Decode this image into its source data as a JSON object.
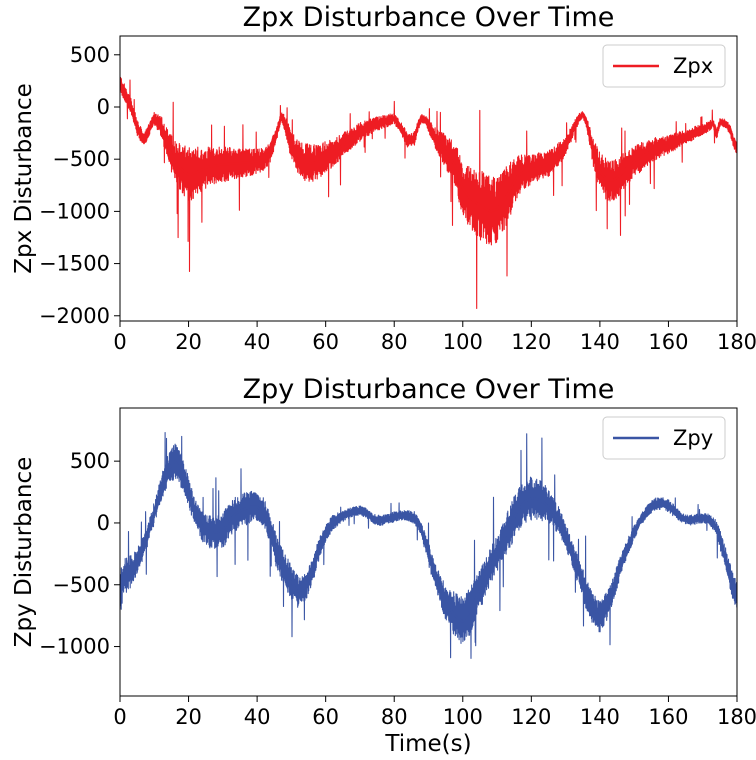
{
  "chart_data": [
    {
      "type": "line",
      "title": "Zpx Disturbance Over Time",
      "xlabel": "",
      "ylabel": "Zpx Disturbance",
      "xlim": [
        0,
        180
      ],
      "ylim": [
        -2050,
        680
      ],
      "xticks": [
        0,
        20,
        40,
        60,
        80,
        100,
        120,
        140,
        160,
        180
      ],
      "yticks": [
        500,
        0,
        -500,
        -1000,
        -1500,
        -2000
      ],
      "ytick_labels": [
        "500",
        "0",
        "−500",
        "−1000",
        "−1500",
        "−2000"
      ],
      "grid": false,
      "legend_position": "top-right",
      "series": [
        {
          "name": "Zpx",
          "color": "#ee1c23",
          "x": [
            0,
            1,
            2,
            3,
            4,
            5,
            7,
            9,
            10,
            12,
            14,
            16,
            18,
            20,
            22,
            24,
            26,
            28,
            30,
            32,
            34,
            36,
            38,
            40,
            42,
            44,
            46,
            47,
            48,
            50,
            52,
            54,
            56,
            58,
            60,
            63,
            66,
            70,
            74,
            78,
            80,
            82,
            84,
            86,
            87,
            88,
            89,
            90,
            92,
            94,
            96,
            98,
            100,
            102,
            104,
            106,
            108,
            110,
            112,
            114,
            116,
            118,
            120,
            122,
            124,
            126,
            128,
            130,
            132,
            134,
            135,
            136,
            137,
            138,
            140,
            142,
            144,
            146,
            148,
            150,
            152,
            154,
            156,
            158,
            160,
            162,
            164,
            166,
            168,
            170,
            172,
            173,
            174,
            175,
            176,
            177,
            178,
            179,
            180
          ],
          "y": [
            230,
            160,
            90,
            20,
            -80,
            -200,
            -320,
            -180,
            -110,
            -180,
            -380,
            -520,
            -600,
            -650,
            -630,
            -600,
            -570,
            -560,
            -550,
            -545,
            -540,
            -535,
            -530,
            -520,
            -500,
            -430,
            -220,
            -90,
            -150,
            -370,
            -480,
            -530,
            -540,
            -520,
            -480,
            -420,
            -340,
            -240,
            -170,
            -130,
            -110,
            -200,
            -330,
            -300,
            -170,
            -110,
            -120,
            -180,
            -300,
            -380,
            -470,
            -580,
            -780,
            -870,
            -920,
            -960,
            -1000,
            -980,
            -900,
            -780,
            -660,
            -620,
            -600,
            -580,
            -560,
            -520,
            -450,
            -380,
            -230,
            -100,
            -70,
            -140,
            -270,
            -420,
            -620,
            -700,
            -700,
            -650,
            -580,
            -520,
            -480,
            -440,
            -400,
            -380,
            -360,
            -330,
            -300,
            -280,
            -240,
            -220,
            -180,
            -150,
            -260,
            -150,
            -150,
            -170,
            -220,
            -330,
            -400
          ],
          "band": [
            80,
            80,
            80,
            80,
            80,
            80,
            60,
            60,
            60,
            100,
            160,
            200,
            240,
            260,
            250,
            220,
            200,
            180,
            170,
            160,
            150,
            140,
            130,
            120,
            110,
            100,
            60,
            40,
            80,
            140,
            170,
            180,
            180,
            170,
            150,
            130,
            110,
            90,
            70,
            60,
            50,
            60,
            70,
            70,
            50,
            40,
            40,
            60,
            100,
            140,
            180,
            220,
            260,
            300,
            320,
            340,
            340,
            320,
            300,
            260,
            200,
            160,
            140,
            140,
            130,
            120,
            110,
            90,
            70,
            40,
            30,
            50,
            90,
            140,
            180,
            200,
            200,
            190,
            170,
            150,
            140,
            120,
            110,
            100,
            90,
            80,
            70,
            60,
            60,
            50,
            50,
            40,
            60,
            40,
            40,
            40,
            50,
            60,
            60
          ]
        }
      ]
    },
    {
      "type": "line",
      "title": "Zpy Disturbance Over Time",
      "xlabel": "Time(s)",
      "ylabel": "Zpy Disturbance",
      "xlim": [
        0,
        180
      ],
      "ylim": [
        -1400,
        930
      ],
      "xticks": [
        0,
        20,
        40,
        60,
        80,
        100,
        120,
        140,
        160,
        180
      ],
      "yticks": [
        500,
        0,
        -500,
        -1000
      ],
      "ytick_labels": [
        "500",
        "0",
        "−500",
        "−1000"
      ],
      "grid": false,
      "legend_position": "top-right",
      "series": [
        {
          "name": "Zpy",
          "color": "#3a55a4",
          "x": [
            0,
            1,
            2,
            4,
            6,
            8,
            10,
            12,
            14,
            16,
            18,
            20,
            22,
            24,
            26,
            28,
            30,
            32,
            34,
            36,
            38,
            40,
            42,
            44,
            46,
            48,
            50,
            52,
            54,
            56,
            58,
            60,
            62,
            64,
            66,
            68,
            70,
            72,
            74,
            76,
            78,
            80,
            82,
            84,
            86,
            88,
            90,
            92,
            94,
            96,
            98,
            100,
            102,
            104,
            106,
            108,
            110,
            112,
            114,
            116,
            118,
            120,
            122,
            124,
            126,
            128,
            130,
            132,
            134,
            136,
            138,
            140,
            142,
            144,
            146,
            148,
            150,
            152,
            154,
            156,
            158,
            160,
            162,
            164,
            166,
            168,
            170,
            172,
            174,
            176,
            178,
            180
          ],
          "y": [
            -600,
            -430,
            -420,
            -370,
            -250,
            -100,
            80,
            280,
            430,
            500,
            420,
            250,
            80,
            -30,
            -70,
            -80,
            -60,
            20,
            80,
            110,
            130,
            130,
            80,
            -70,
            -260,
            -380,
            -480,
            -560,
            -520,
            -400,
            -220,
            -80,
            0,
            40,
            70,
            90,
            100,
            80,
            30,
            20,
            30,
            50,
            60,
            60,
            40,
            -60,
            -250,
            -430,
            -580,
            -690,
            -760,
            -800,
            -720,
            -600,
            -480,
            -350,
            -250,
            -130,
            -20,
            100,
            170,
            200,
            190,
            160,
            100,
            20,
            -100,
            -260,
            -400,
            -570,
            -700,
            -760,
            -680,
            -520,
            -350,
            -200,
            -80,
            30,
            110,
            150,
            160,
            140,
            90,
            40,
            20,
            30,
            40,
            30,
            -40,
            -220,
            -440,
            -600
          ],
          "band": [
            180,
            150,
            140,
            120,
            100,
            90,
            90,
            100,
            130,
            150,
            140,
            120,
            110,
            120,
            130,
            140,
            150,
            150,
            140,
            140,
            130,
            120,
            120,
            130,
            140,
            140,
            140,
            130,
            120,
            110,
            90,
            70,
            60,
            50,
            40,
            40,
            40,
            40,
            40,
            40,
            40,
            40,
            40,
            40,
            50,
            60,
            90,
            110,
            130,
            160,
            190,
            200,
            190,
            170,
            160,
            150,
            150,
            160,
            170,
            180,
            180,
            180,
            170,
            150,
            130,
            110,
            100,
            110,
            120,
            130,
            130,
            130,
            120,
            110,
            90,
            70,
            60,
            50,
            50,
            50,
            50,
            50,
            50,
            40,
            40,
            40,
            40,
            40,
            60,
            90,
            110,
            120
          ]
        }
      ]
    }
  ]
}
